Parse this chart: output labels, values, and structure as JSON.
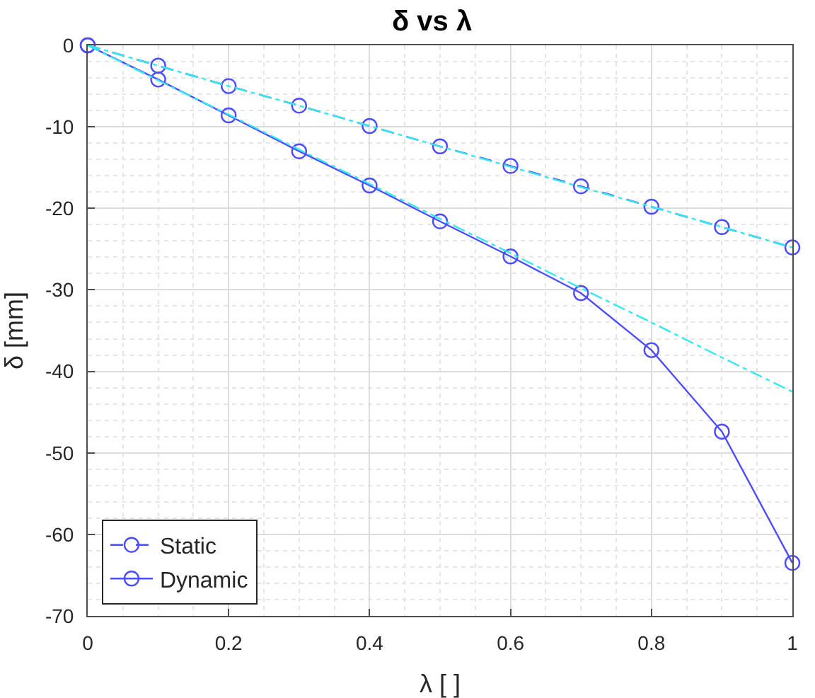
{
  "chart_data": {
    "type": "line",
    "title": "δ vs λ",
    "xlabel": "λ [ ]",
    "ylabel": "δ [mm]",
    "x": [
      0,
      0.1,
      0.2,
      0.3,
      0.4,
      0.5,
      0.6,
      0.7,
      0.8,
      0.9,
      1
    ],
    "series": [
      {
        "name": "Static",
        "color": "#4d4dff",
        "line_style": "dashed",
        "marker": "circle",
        "values": [
          0,
          -2.5,
          -5,
          -7.4,
          -9.9,
          -12.4,
          -14.8,
          -17.3,
          -19.8,
          -22.3,
          -24.8
        ]
      },
      {
        "name": "Dynamic",
        "color": "#4d4dff",
        "line_style": "solid",
        "marker": "circle",
        "values": [
          0,
          -4.2,
          -8.6,
          -13,
          -17.2,
          -21.6,
          -25.9,
          -30.4,
          -37.4,
          -47.4,
          -63.5
        ]
      },
      {
        "type": "line",
        "color": "#33e8ee",
        "line_style": "dashdot",
        "marker": "none",
        "values": [
          0,
          -2.5,
          -5,
          -7.4,
          -9.9,
          -12.4,
          -14.9,
          -17.4,
          -19.8,
          -22.3,
          -24.8
        ]
      },
      {
        "type": "line",
        "color": "#33e8ee",
        "line_style": "dashdot",
        "marker": "none",
        "values": [
          0,
          -4.3,
          -8.5,
          -12.8,
          -17,
          -21.3,
          -25.5,
          -29.8,
          -34,
          -38.3,
          -42.5
        ]
      }
    ],
    "xlim": [
      0,
      1
    ],
    "xticks": [
      0,
      0.2,
      0.4,
      0.6,
      0.8,
      1
    ],
    "ylim": [
      -70,
      0
    ],
    "yticks": [
      -70,
      -60,
      -50,
      -40,
      -30,
      -20,
      -10,
      0
    ],
    "grid": true,
    "legend": "bottom left"
  }
}
